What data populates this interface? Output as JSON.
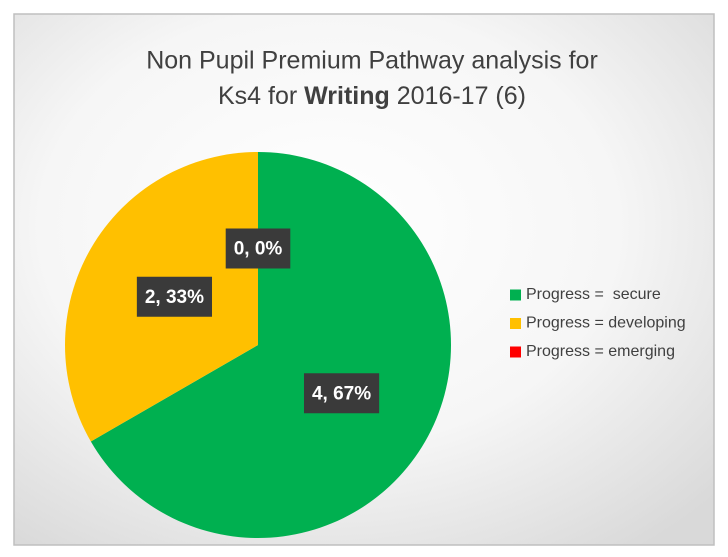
{
  "chart_data": {
    "type": "pie",
    "title": {
      "line1": "Non Pupil Premium Pathway analysis for",
      "line2": [
        "Ks4 for ",
        "Writing",
        " 2016-17 (6)"
      ]
    },
    "categories": [
      "Progress =  secure",
      "Progress = developing",
      "Progress = emerging"
    ],
    "values": [
      4,
      2,
      0
    ],
    "value_labels": [
      "4, 67%",
      "2, 33%",
      "0, 0%"
    ],
    "colors": [
      "#00b050",
      "#ffc000",
      "#ff0000"
    ],
    "legend": "right"
  }
}
